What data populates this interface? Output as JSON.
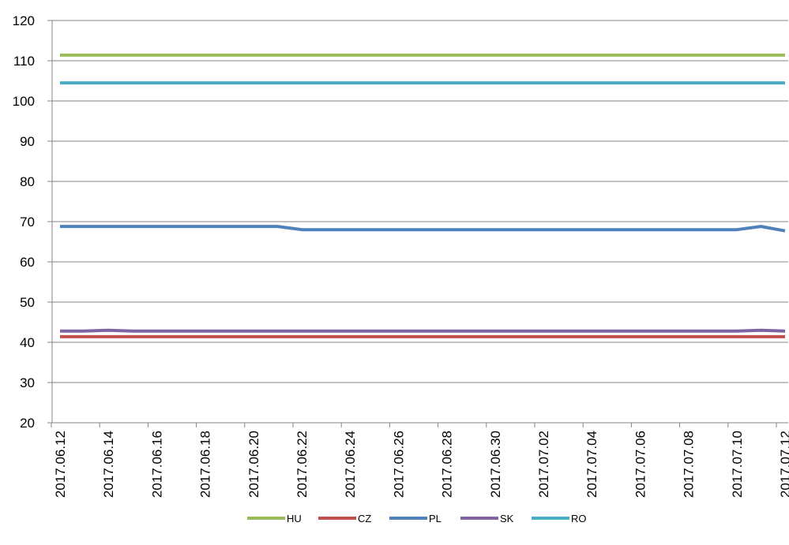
{
  "chart_data": {
    "type": "line",
    "title": "",
    "xlabel": "",
    "ylabel": "",
    "ylim": [
      20,
      120
    ],
    "yticks": [
      20,
      30,
      40,
      50,
      60,
      70,
      80,
      90,
      100,
      110,
      120
    ],
    "grid": true,
    "legend_position": "bottom",
    "x": [
      "2017.06.12",
      "2017.06.13",
      "2017.06.14",
      "2017.06.15",
      "2017.06.16",
      "2017.06.17",
      "2017.06.18",
      "2017.06.19",
      "2017.06.20",
      "2017.06.21",
      "2017.06.22",
      "2017.06.23",
      "2017.06.24",
      "2017.06.25",
      "2017.06.26",
      "2017.06.27",
      "2017.06.28",
      "2017.06.29",
      "2017.06.30",
      "2017.07.01",
      "2017.07.02",
      "2017.07.03",
      "2017.07.04",
      "2017.07.05",
      "2017.07.06",
      "2017.07.07",
      "2017.07.08",
      "2017.07.09",
      "2017.07.10",
      "2017.07.11",
      "2017.07.12"
    ],
    "xtick_labels": [
      "2017.06.12",
      "2017.06.14",
      "2017.06.16",
      "2017.06.18",
      "2017.06.20",
      "2017.06.22",
      "2017.06.24",
      "2017.06.26",
      "2017.06.28",
      "2017.06.30",
      "2017.07.02",
      "2017.07.04",
      "2017.07.06",
      "2017.07.08",
      "2017.07.10",
      "2017.07.12"
    ],
    "series": [
      {
        "name": "HU",
        "color": "#9BBB59",
        "values": [
          111.4,
          111.4,
          111.4,
          111.4,
          111.4,
          111.4,
          111.4,
          111.4,
          111.4,
          111.4,
          111.4,
          111.4,
          111.4,
          111.4,
          111.4,
          111.4,
          111.4,
          111.4,
          111.4,
          111.4,
          111.4,
          111.4,
          111.4,
          111.4,
          111.4,
          111.4,
          111.4,
          111.4,
          111.4,
          111.4,
          111.4
        ]
      },
      {
        "name": "CZ",
        "color": "#C0504D",
        "values": [
          41.4,
          41.4,
          41.4,
          41.4,
          41.4,
          41.4,
          41.4,
          41.4,
          41.4,
          41.4,
          41.4,
          41.4,
          41.4,
          41.4,
          41.4,
          41.4,
          41.4,
          41.4,
          41.4,
          41.4,
          41.4,
          41.4,
          41.4,
          41.4,
          41.4,
          41.4,
          41.4,
          41.4,
          41.4,
          41.4,
          41.4
        ]
      },
      {
        "name": "PL",
        "color": "#4F81BD",
        "values": [
          68.8,
          68.8,
          68.8,
          68.8,
          68.8,
          68.8,
          68.8,
          68.8,
          68.8,
          68.8,
          68.0,
          68.0,
          68.0,
          68.0,
          68.0,
          68.0,
          68.0,
          68.0,
          68.0,
          68.0,
          68.0,
          68.0,
          68.0,
          68.0,
          68.0,
          68.0,
          68.0,
          68.0,
          68.0,
          68.8,
          67.7
        ]
      },
      {
        "name": "SK",
        "color": "#8064A2",
        "values": [
          42.8,
          42.8,
          43.0,
          42.8,
          42.8,
          42.8,
          42.8,
          42.8,
          42.8,
          42.8,
          42.8,
          42.8,
          42.8,
          42.8,
          42.8,
          42.8,
          42.8,
          42.8,
          42.8,
          42.8,
          42.8,
          42.8,
          42.8,
          42.8,
          42.8,
          42.8,
          42.8,
          42.8,
          42.8,
          43.0,
          42.8
        ]
      },
      {
        "name": "RO",
        "color": "#4BACC6",
        "values": [
          104.5,
          104.5,
          104.5,
          104.5,
          104.5,
          104.5,
          104.5,
          104.5,
          104.5,
          104.5,
          104.5,
          104.5,
          104.5,
          104.5,
          104.5,
          104.5,
          104.5,
          104.5,
          104.5,
          104.5,
          104.5,
          104.5,
          104.5,
          104.5,
          104.5,
          104.5,
          104.5,
          104.5,
          104.5,
          104.5,
          104.5
        ]
      }
    ]
  }
}
